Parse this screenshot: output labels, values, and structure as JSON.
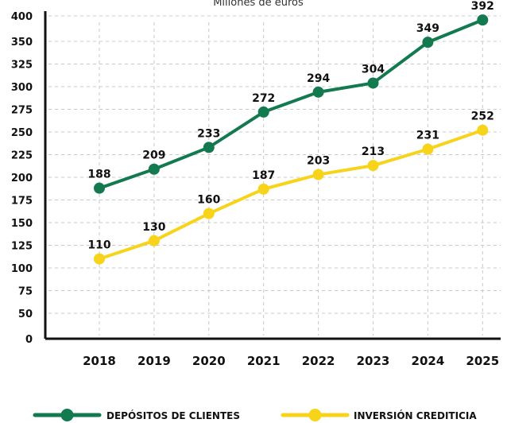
{
  "chart_data": {
    "type": "line",
    "subtitle": "Millones de euros",
    "categories": [
      "2018",
      "2019",
      "2020",
      "2021",
      "2022",
      "2023",
      "2024",
      "2025"
    ],
    "series": [
      {
        "name": "DEPÓSITOS DE CLIENTES",
        "color": "#137a4f",
        "values": [
          188,
          209,
          233,
          272,
          294,
          304,
          349,
          392
        ]
      },
      {
        "name": "INVERSIÓN CREDITICIA",
        "color": "#f7d31a",
        "values": [
          110,
          130,
          160,
          187,
          203,
          213,
          231,
          252
        ]
      }
    ],
    "yticks": [
      0,
      50,
      75,
      100,
      125,
      150,
      175,
      200,
      225,
      250,
      275,
      300,
      325,
      350,
      400
    ],
    "ylim": [
      0,
      400
    ],
    "grid": true,
    "legend_position": "bottom"
  }
}
